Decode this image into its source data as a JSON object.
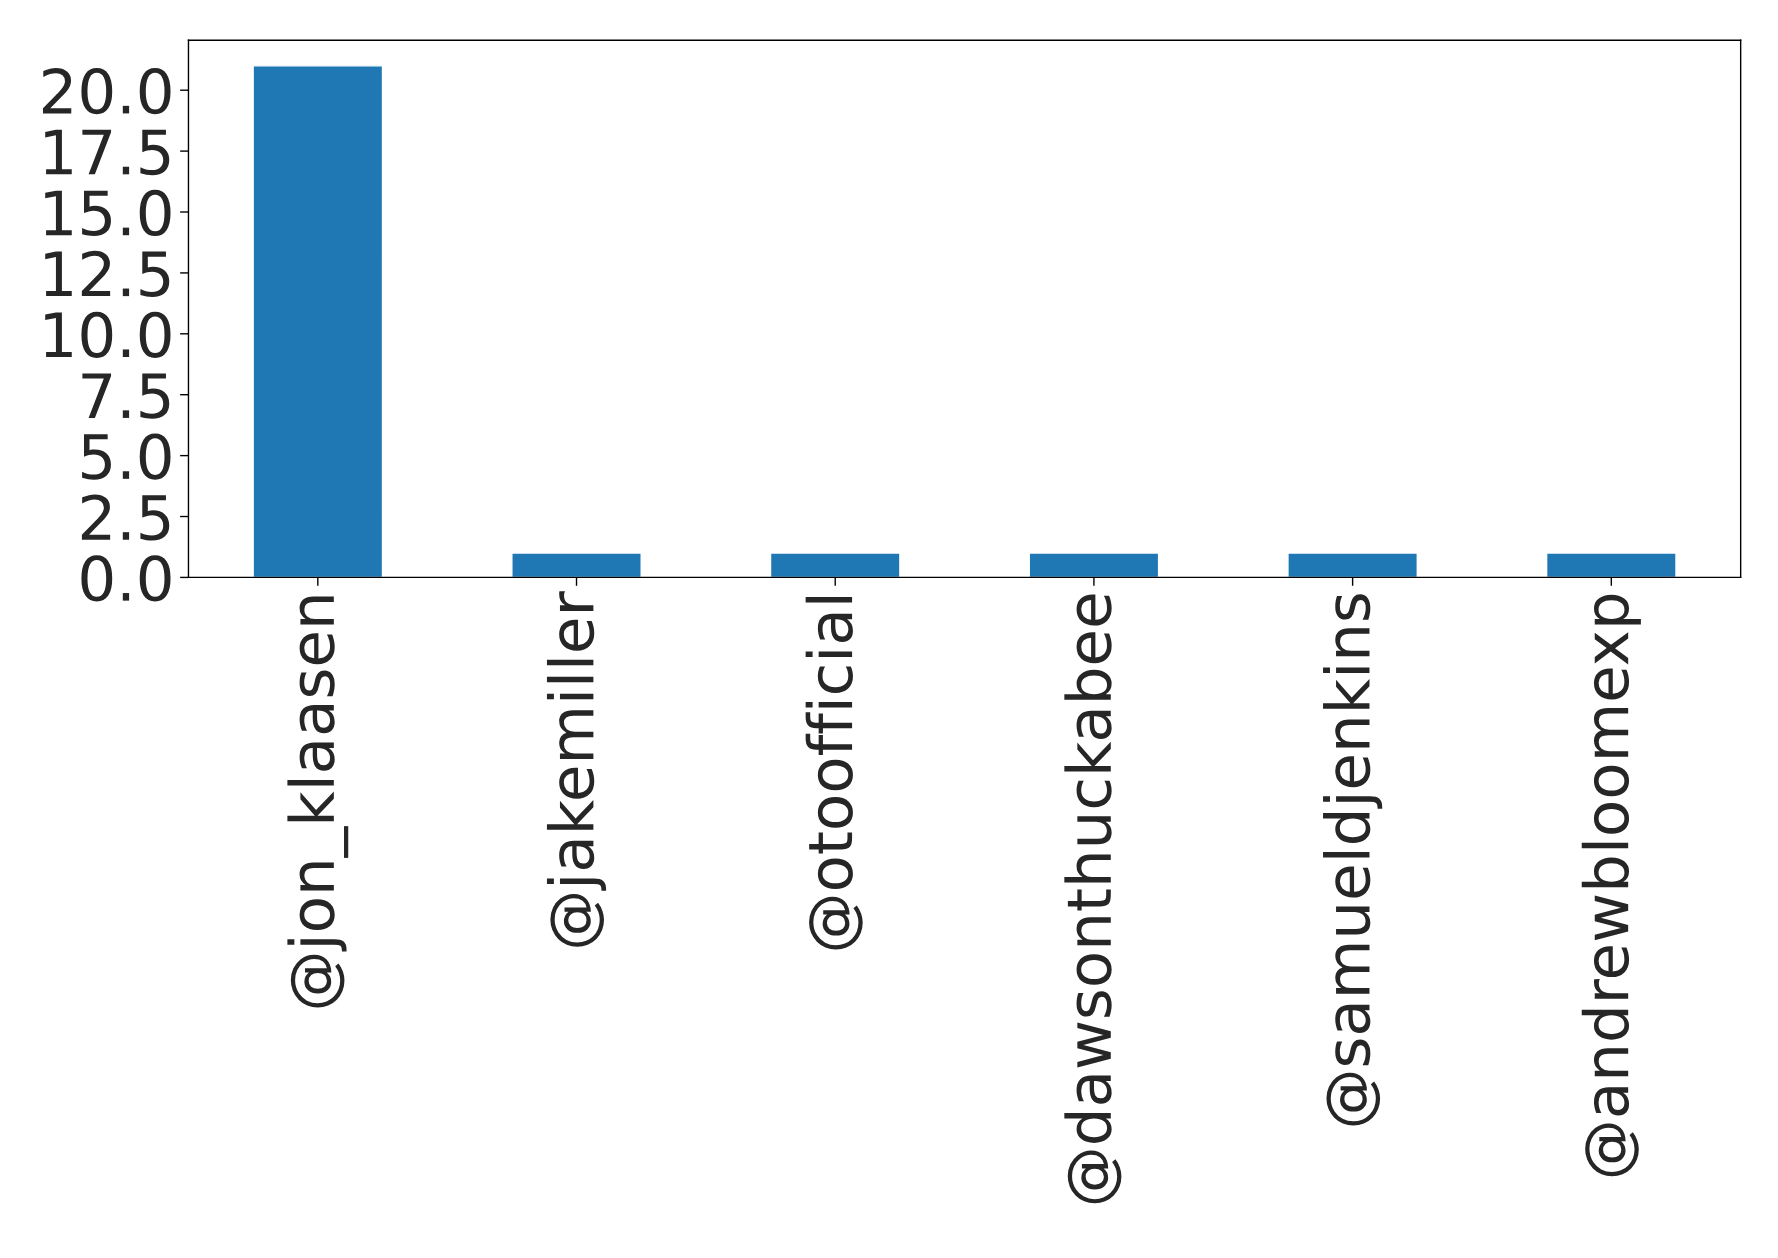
{
  "chart_data": {
    "type": "bar",
    "categories": [
      "@jon_klaasen",
      "@jakemiller",
      "@otoofficial",
      "@dawsonthuckabee",
      "@samueldjenkins",
      "@andrewbloomexp"
    ],
    "values": [
      21,
      1,
      1,
      1,
      1,
      1
    ],
    "color": "#1f77b4",
    "ylim": [
      0,
      22.05
    ],
    "yticks": [
      {
        "value": 0,
        "label": "0.0"
      },
      {
        "value": 2.5,
        "label": "2.5"
      },
      {
        "value": 5,
        "label": "5.0"
      },
      {
        "value": 7.5,
        "label": "7.5"
      },
      {
        "value": 10,
        "label": "10.0"
      },
      {
        "value": 12.5,
        "label": "12.5"
      },
      {
        "value": 15,
        "label": "15.0"
      },
      {
        "value": 17.5,
        "label": "17.5"
      },
      {
        "value": 20,
        "label": "20.0"
      }
    ],
    "grid": false,
    "legend": false
  }
}
